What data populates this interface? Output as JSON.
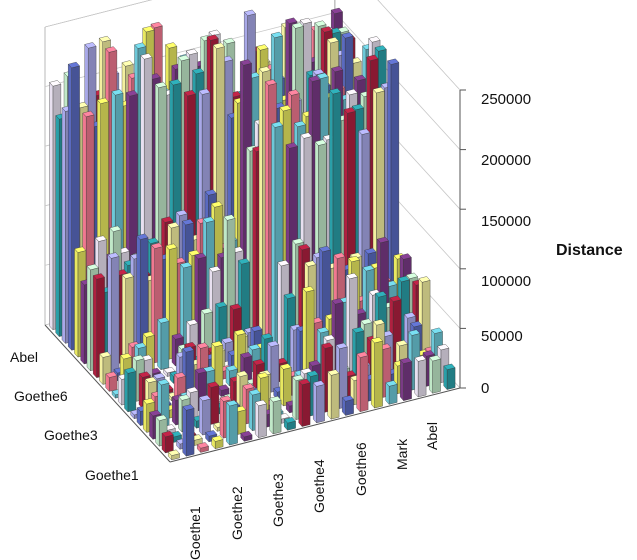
{
  "chart_data": {
    "type": "bar",
    "subtype": "3d-bar-matrix",
    "title": "",
    "zlabel": "Distance",
    "zlim": [
      0,
      250000
    ],
    "z_ticks": [
      "0",
      "50000",
      "100000",
      "150000",
      "200000",
      "250000"
    ],
    "x_tick_labels": [
      "Goethe1",
      "Goethe2",
      "Goethe3",
      "Goethe4",
      "Goethe6",
      "Mark",
      "Abel"
    ],
    "y_tick_labels": [
      "Abel",
      "Goethe6",
      "Goethe3",
      "Goethe1"
    ],
    "grid": true,
    "colors": [
      "#f3f0a0",
      "#6cc8d8",
      "#2a9fa8",
      "#5a6ac0",
      "#7a3a86",
      "#b02040",
      "#f07890",
      "#e8e0f0",
      "#a8a8e8",
      "#e8e860",
      "#c0e8c8"
    ]
  }
}
